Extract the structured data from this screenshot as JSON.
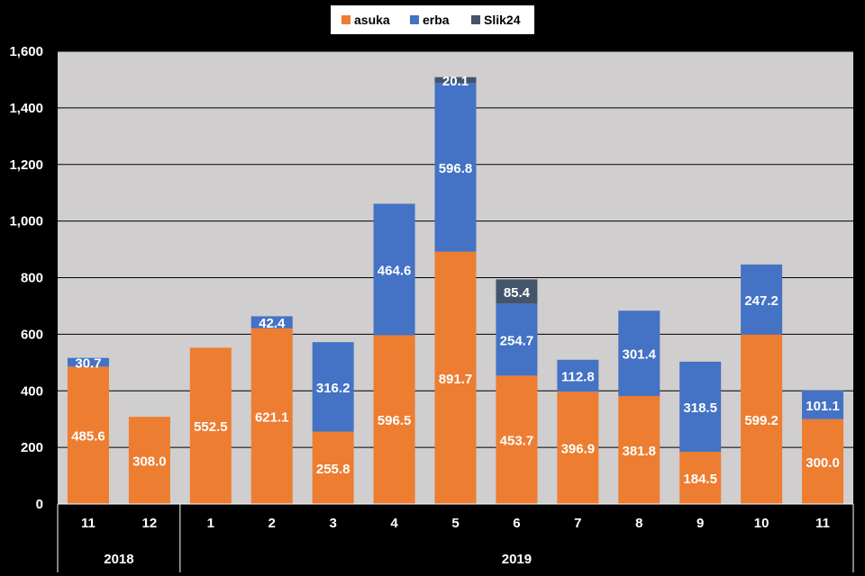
{
  "chart_data": {
    "type": "bar",
    "stacked": true,
    "categories": [
      "11",
      "12",
      "1",
      "2",
      "3",
      "4",
      "5",
      "6",
      "7",
      "8",
      "9",
      "10",
      "11"
    ],
    "year_groups": [
      {
        "label": "2018",
        "count": 2
      },
      {
        "label": "2019",
        "count": 11
      }
    ],
    "series": [
      {
        "name": "asuka",
        "color": "#ED7D31",
        "values": [
          485.6,
          308.0,
          552.5,
          621.1,
          255.8,
          596.5,
          891.7,
          453.7,
          396.9,
          381.8,
          184.5,
          599.2,
          300.0
        ]
      },
      {
        "name": "erba",
        "color": "#4472C4",
        "values": [
          30.7,
          0,
          0,
          42.4,
          316.2,
          464.6,
          596.8,
          254.7,
          112.8,
          301.4,
          318.5,
          247.2,
          101.1
        ]
      },
      {
        "name": "Slik24",
        "color": "#44546A",
        "values": [
          0,
          0,
          0,
          0,
          0,
          0,
          20.1,
          85.4,
          0,
          0,
          0,
          0,
          0
        ]
      }
    ],
    "ylim": [
      0,
      1600
    ],
    "yticks": [
      0,
      200,
      400,
      600,
      800,
      1000,
      1200,
      1400,
      1600
    ],
    "ytick_labels": [
      "0",
      "200",
      "400",
      "600",
      "800",
      "1,000",
      "1,200",
      "1,400",
      "1,600"
    ],
    "grid": true,
    "legend_position": "top-center",
    "plot_background": "#D0CECE",
    "page_background": "#000000"
  }
}
